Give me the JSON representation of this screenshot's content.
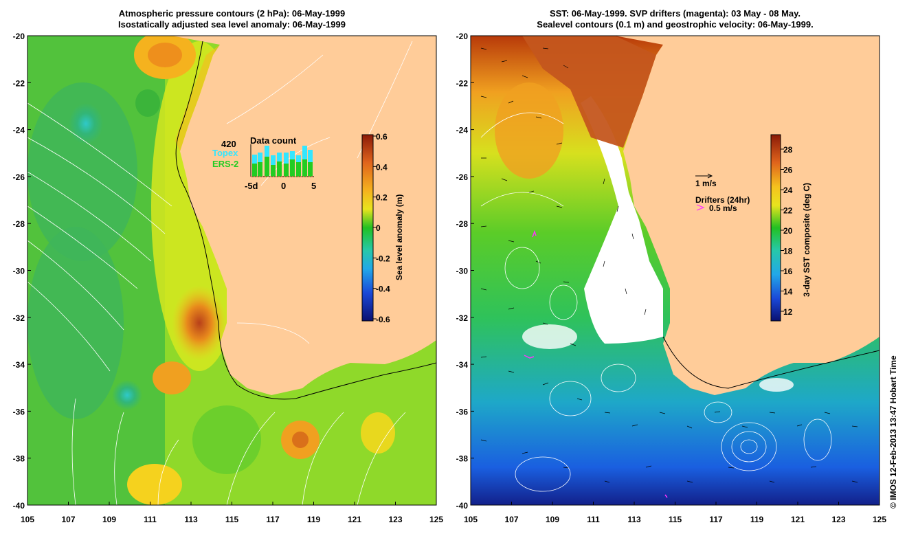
{
  "left_panel": {
    "title_line1": "Atmospheric pressure contours (2 hPa): 06-May-1999",
    "title_line2": "Isostatically adjusted sea level anomaly: 06-May-1999",
    "lon_ticks": [
      "105",
      "107",
      "109",
      "111",
      "113",
      "115",
      "117",
      "119",
      "121",
      "123",
      "125"
    ],
    "lat_ticks": [
      "-20",
      "-22",
      "-24",
      "-26",
      "-28",
      "-30",
      "-32",
      "-34",
      "-36",
      "-38",
      "-40"
    ],
    "colorbar": {
      "label": "Sea level anomaly (m)",
      "ticks": [
        "0.6",
        "0.4",
        "0.2",
        "0",
        "-0.2",
        "-0.4",
        "-0.6"
      ]
    },
    "inset": {
      "count_value": "420",
      "title": "Data count",
      "legend_topex": "Topex",
      "legend_ers": "ERS-2",
      "x_ticks": [
        "-5d",
        "0",
        "5"
      ],
      "topex_color": "#33e6ff",
      "ers_color": "#22cc22"
    }
  },
  "right_panel": {
    "title_line1": "SST: 06-May-1999. SVP drifters (magenta): 03 May - 08 May.",
    "title_line2": "Sealevel contours (0.1 m) and geostrophic velocity: 06-May-1999.",
    "lon_ticks": [
      "105",
      "107",
      "109",
      "111",
      "113",
      "115",
      "117",
      "119",
      "121",
      "123",
      "125"
    ],
    "lat_ticks": [
      "-20",
      "-22",
      "-24",
      "-26",
      "-28",
      "-30",
      "-32",
      "-34",
      "-36",
      "-38",
      "-40"
    ],
    "colorbar": {
      "label": "3-day SST composite (deg C)",
      "ticks": [
        "28",
        "26",
        "24",
        "22",
        "20",
        "18",
        "16",
        "14",
        "12"
      ]
    },
    "velocity_legend": "1 m/s",
    "drifter_legend_title": "Drifters (24hr)",
    "drifter_legend_speed": "0.5 m/s",
    "drifter_color": "#ff33ff"
  },
  "credit": "© IMOS 12-Feb-2013 13:47 Hobart Time",
  "colors": {
    "land": "#ffcc99",
    "missing": "#ffffff",
    "contour": "#ffffff"
  }
}
